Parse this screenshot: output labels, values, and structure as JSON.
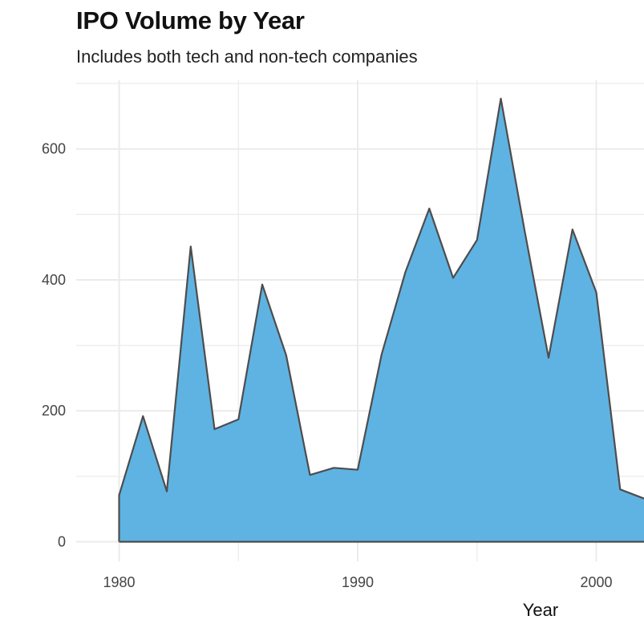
{
  "chart_data": {
    "type": "area",
    "title": "IPO Volume by Year",
    "subtitle": "Includes both tech and non-tech companies",
    "xlabel": "Year",
    "ylabel": "",
    "x": [
      1980,
      1981,
      1982,
      1983,
      1984,
      1985,
      1986,
      1987,
      1988,
      1989,
      1990,
      1991,
      1992,
      1993,
      1994,
      1995,
      1996,
      1997,
      1998,
      1999,
      2000,
      2001,
      2002
    ],
    "values": [
      71,
      192,
      77,
      451,
      172,
      187,
      393,
      285,
      102,
      113,
      110,
      286,
      412,
      509,
      403,
      461,
      677,
      474,
      281,
      477,
      381,
      80,
      66
    ],
    "xlim": [
      1978.2,
      2002
    ],
    "ylim": [
      -30,
      705
    ],
    "xticks": [
      1980,
      1990,
      2000
    ],
    "yticks": [
      0,
      200,
      400,
      600
    ],
    "grid": true,
    "colors": {
      "fill": "#5fb3e2",
      "line": "#4d4d4d",
      "grid": "#ebebeb"
    }
  }
}
